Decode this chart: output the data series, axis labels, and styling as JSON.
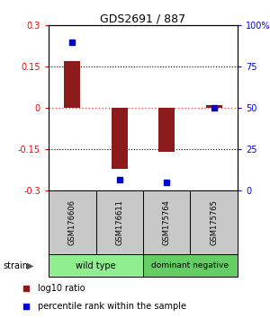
{
  "title": "GDS2691 / 887",
  "samples": [
    "GSM176606",
    "GSM176611",
    "GSM175764",
    "GSM175765"
  ],
  "log10_ratio": [
    0.17,
    -0.22,
    -0.16,
    0.01
  ],
  "percentile_rank": [
    90,
    7,
    5,
    50
  ],
  "ylim_left": [
    -0.3,
    0.3
  ],
  "ylim_right": [
    0,
    100
  ],
  "yticks_left": [
    -0.3,
    -0.15,
    0,
    0.15,
    0.3
  ],
  "yticks_right": [
    0,
    25,
    50,
    75,
    100
  ],
  "ytick_labels_left": [
    "-0.3",
    "-0.15",
    "0",
    "0.15",
    "0.3"
  ],
  "ytick_labels_right": [
    "0",
    "25",
    "50",
    "75",
    "100%"
  ],
  "group_labels": [
    "wild type",
    "dominant negative"
  ],
  "group_colors": [
    "#90EE90",
    "#66CD66"
  ],
  "bar_color": "#8B1A1A",
  "dot_color": "#0000CD",
  "zero_line_color": "#FF4444",
  "bg_color": "#FFFFFF",
  "sample_cell_color": "#C8C8C8",
  "legend_red_label": "log10 ratio",
  "legend_blue_label": "percentile rank within the sample",
  "strain_label": "strain",
  "bar_width": 0.35
}
